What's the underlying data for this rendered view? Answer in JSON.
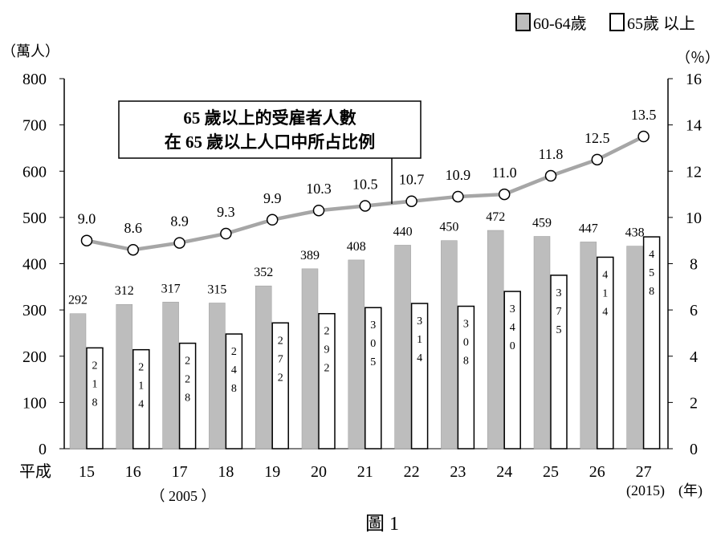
{
  "figure_caption": "圖 1",
  "chart_data": {
    "type": "bar",
    "categories": [
      "15",
      "16",
      "17",
      "18",
      "19",
      "20",
      "21",
      "22",
      "23",
      "24",
      "25",
      "26",
      "27"
    ],
    "x_prefix": "平成",
    "x_note_2005": "（ 2005 ）",
    "x_note_2015": "(2015)",
    "x_unit": "(年)",
    "left_unit": "（萬人）",
    "right_unit": "（％）",
    "ylim_left": [
      0,
      800
    ],
    "ylim_right": [
      0,
      16
    ],
    "left_ticks": [
      0,
      100,
      200,
      300,
      400,
      500,
      600,
      700,
      800
    ],
    "right_ticks": [
      0,
      2,
      4,
      6,
      8,
      10,
      12,
      14,
      16
    ],
    "series": [
      {
        "name": "60-64歲",
        "type": "bar",
        "axis": "left",
        "color": "#bdbdbd",
        "values": [
          292,
          312,
          317,
          315,
          352,
          389,
          408,
          440,
          450,
          472,
          459,
          447,
          438
        ],
        "labels": [
          "292",
          "312",
          "317",
          "315",
          "352",
          "389",
          "408",
          "440",
          "450",
          "472",
          "459",
          "447",
          "438"
        ]
      },
      {
        "name": "65歲 以上",
        "type": "bar",
        "axis": "left",
        "color": "#ffffff",
        "values": [
          218,
          214,
          228,
          248,
          272,
          292,
          305,
          314,
          308,
          340,
          375,
          414,
          458
        ],
        "labels": [
          "218",
          "214",
          "228",
          "248",
          "272",
          "292",
          "305",
          "314",
          "308",
          "340",
          "375",
          "414",
          "458"
        ]
      },
      {
        "name": "65 歲以上的受雇者人數在 65 歲以上人口中所占比例",
        "type": "line",
        "axis": "right",
        "color": "#a6a6a6",
        "values": [
          9.0,
          8.6,
          8.9,
          9.3,
          9.9,
          10.3,
          10.5,
          10.7,
          10.9,
          11.0,
          11.8,
          12.5,
          13.5
        ],
        "labels": [
          "9.0",
          "8.6",
          "8.9",
          "9.3",
          "9.9",
          "10.3",
          "10.5",
          "10.7",
          "10.9",
          "11.0",
          "11.8",
          "12.5",
          "13.5"
        ]
      }
    ],
    "annotation": {
      "line1": "65 歲以上的受雇者人數",
      "line2": "在 65 歲以上人口中所占比例"
    },
    "legend_position": "top-right",
    "grid": false
  }
}
